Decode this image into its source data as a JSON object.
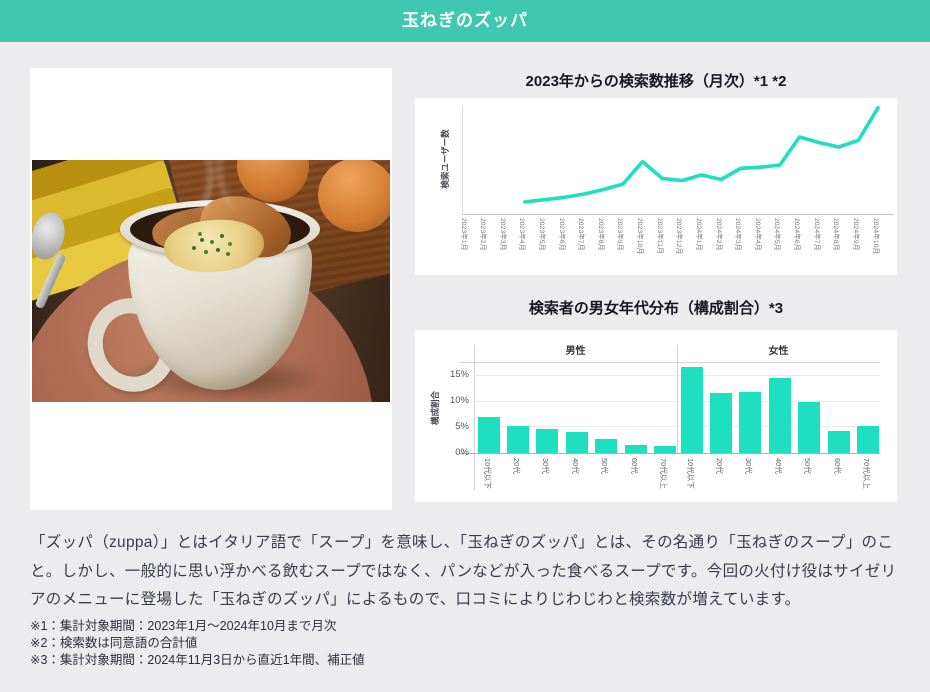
{
  "header": {
    "title": "玉ねぎのズッパ"
  },
  "colors": {
    "page_bg": "#ececee",
    "card_bg": "#ffffff",
    "header_bg": "#3fc7b2",
    "accent": "#1fdfc1"
  },
  "chart_data": [
    {
      "type": "line",
      "title": "2023年からの検索数推移（月次）*1 *2",
      "xlabel": "",
      "ylabel": "検索ユーザー数",
      "color": "#1fdfc1",
      "categories": [
        "2023年1月",
        "2023年2月",
        "2023年3月",
        "2023年4月",
        "2023年5月",
        "2023年6月",
        "2023年7月",
        "2023年8月",
        "2023年9月",
        "2023年10月",
        "2023年11月",
        "2023年12月",
        "2024年1月",
        "2024年2月",
        "2024年3月",
        "2024年4月",
        "2024年5月",
        "2024年6月",
        "2024年7月",
        "2024年8月",
        "2024年9月",
        "2024年10月"
      ],
      "values": [
        null,
        null,
        null,
        9,
        11,
        13,
        16,
        20,
        25,
        45,
        30,
        28,
        33,
        29,
        39,
        40,
        42,
        67,
        62,
        58,
        64,
        93
      ],
      "ylim": [
        0,
        100
      ],
      "yticks_shown": false,
      "legend": "none"
    },
    {
      "type": "bar",
      "title": "検索者の男女年代分布（構成割合）*3",
      "xlabel": "",
      "ylabel": "構成割合",
      "color": "#1fdfc1",
      "categories": [
        "10代以下",
        "20代",
        "30代",
        "40代",
        "50代",
        "60代",
        "70代以上"
      ],
      "series": [
        {
          "name": "男性",
          "values": [
            7.0,
            5.2,
            4.6,
            4.0,
            2.7,
            1.6,
            1.4
          ]
        },
        {
          "name": "女性",
          "values": [
            16.7,
            11.7,
            11.9,
            14.6,
            10.0,
            4.3,
            5.3
          ]
        }
      ],
      "yticks": [
        0,
        5,
        10,
        15
      ],
      "ytick_labels": [
        "0%",
        "5%",
        "10%",
        "15%"
      ],
      "ylim": [
        0,
        18
      ],
      "legend": "group-headers"
    }
  ],
  "description": "「ズッパ（zuppa）」とはイタリア語で「スープ」を意味し、「玉ねぎのズッパ」とは、その名通り「玉ねぎのスープ」のこと。しかし、一般的に思い浮かべる飲むスープではなく、パンなどが入った食べるスープです。今回の火付け役はサイゼリアのメニューに登場した「玉ねぎのズッパ」によるもので、口コミによりじわじわと検索数が増えています。",
  "footnotes": [
    "※1：集計対象期間：2023年1月〜2024年10月まで月次",
    "※2：検索数は同意語の合計値",
    "※3：集計対象期間：2024年11月3日から直近1年間、補正値"
  ]
}
